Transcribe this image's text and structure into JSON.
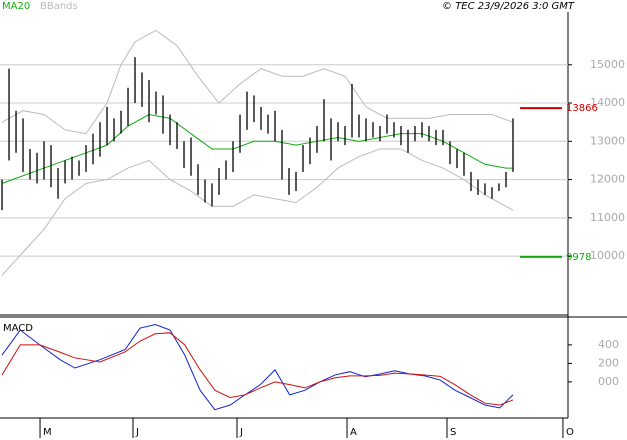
{
  "source": "© TEC 23/9/2026 3:0 GMT",
  "chart_data": [
    {
      "type": "ohlc",
      "xlim": [
        -0.29,
        80.86
      ],
      "xticks": [
        {
          "value": 5.43,
          "label": "M"
        },
        {
          "value": 18.71,
          "label": "J"
        },
        {
          "value": 33.57,
          "label": "J"
        },
        {
          "value": 49.29,
          "label": "A"
        },
        {
          "value": 63.57,
          "label": "S"
        },
        {
          "value": 80.14,
          "label": "O"
        }
      ],
      "ylim": [
        8460,
        16380
      ],
      "yticks": [
        10000,
        11000,
        12000,
        13000,
        14000,
        15000
      ],
      "grid": true,
      "bars": {
        "color": "#000000",
        "high": [
          12000,
          14900,
          13800,
          13600,
          12800,
          12700,
          13000,
          12900,
          12300,
          12500,
          12600,
          12500,
          12900,
          13200,
          13500,
          13900,
          13600,
          13800,
          14400,
          15200,
          14800,
          14600,
          14300,
          14200,
          13700,
          13500,
          13000,
          13100,
          12400,
          12000,
          11900,
          12300,
          12500,
          13000,
          13700,
          14300,
          14200,
          13900,
          13700,
          13800,
          13300,
          12300,
          12200,
          12900,
          13100,
          13400,
          14100,
          13600,
          13500,
          13400,
          14500,
          13700,
          13600,
          13500,
          13400,
          13700,
          13500,
          13400,
          13300,
          13400,
          13500,
          13400,
          13300,
          13300,
          13000,
          12800,
          12700,
          12200,
          12000,
          11900,
          11800,
          11900,
          12200,
          13600
        ],
        "low": [
          11200,
          12500,
          12700,
          12200,
          12000,
          11900,
          12000,
          11800,
          11500,
          11900,
          12000,
          12100,
          12200,
          12400,
          12600,
          12900,
          13000,
          13200,
          13400,
          14000,
          13900,
          13500,
          13700,
          13200,
          12900,
          12800,
          12300,
          12100,
          11600,
          11400,
          11300,
          11600,
          12000,
          12200,
          12700,
          13300,
          13500,
          13300,
          13200,
          13000,
          12000,
          11600,
          11700,
          12200,
          12400,
          12700,
          13000,
          12500,
          13000,
          12900,
          13100,
          13100,
          13000,
          13100,
          13000,
          13200,
          13100,
          12900,
          12700,
          13000,
          13100,
          13000,
          12900,
          12900,
          12400,
          12300,
          12100,
          11700,
          11600,
          11600,
          11500,
          11700,
          11800,
          12200
        ]
      },
      "series": [
        {
          "name": "MA20",
          "color": "#11aa11",
          "x": [
            0,
            3,
            6,
            9,
            12,
            15,
            18,
            21,
            24,
            27,
            30,
            33,
            36,
            39,
            42,
            45,
            48,
            51,
            54,
            57,
            60,
            63,
            66,
            69,
            72,
            73
          ],
          "values": [
            11900,
            12100,
            12300,
            12500,
            12700,
            12900,
            13400,
            13700,
            13600,
            13200,
            12800,
            12800,
            13000,
            13000,
            12900,
            13000,
            13100,
            13000,
            13100,
            13200,
            13200,
            13000,
            12700,
            12400,
            12300,
            12300
          ]
        },
        {
          "name": "BBands",
          "color": "#bbbbbb",
          "x": [
            0,
            3,
            6,
            9,
            12,
            15,
            17,
            19,
            22,
            25,
            28,
            31,
            34,
            37,
            40,
            43,
            46,
            49,
            52,
            55,
            58,
            61,
            64,
            67,
            70,
            73
          ],
          "upper": [
            13500,
            13800,
            13700,
            13300,
            13200,
            14000,
            15000,
            15600,
            15900,
            15500,
            14700,
            14000,
            14500,
            14900,
            14700,
            14700,
            14900,
            14700,
            13900,
            13600,
            13600,
            13600,
            13700,
            13700,
            13700,
            13500
          ],
          "lower_x": [
            0,
            3,
            6,
            9,
            12,
            15,
            18,
            21,
            24,
            27,
            30,
            33,
            36,
            39,
            42,
            45,
            48,
            51,
            54,
            57,
            60,
            63,
            66,
            69,
            72,
            73
          ],
          "lower": [
            9500,
            10100,
            10700,
            11500,
            11900,
            12000,
            12300,
            12500,
            12000,
            11700,
            11300,
            11300,
            11600,
            11500,
            11400,
            11800,
            12300,
            12600,
            12800,
            12800,
            12500,
            12300,
            12000,
            11600,
            11300,
            11200
          ]
        }
      ],
      "levels": [
        {
          "value": 13866,
          "color": "#cc0000"
        },
        {
          "value": 9978,
          "color": "#11aa11"
        }
      ]
    },
    {
      "type": "line",
      "title": "MACD",
      "ylim": [
        -390,
        690
      ],
      "yticks": [
        400,
        200,
        {
          "value": 0,
          "label": "000"
        }
      ],
      "x": [
        0,
        2.6,
        5.4,
        8.3,
        10.4,
        14,
        17.6,
        19.7,
        21.9,
        24,
        26.1,
        28.3,
        30.4,
        32.6,
        34.7,
        36.9,
        39,
        41.1,
        43.3,
        45.4,
        47.6,
        49.7,
        51.9,
        54,
        56.1,
        58.3,
        60.4,
        62.6,
        64.7,
        66.9,
        69,
        71.1,
        73
      ],
      "series": [
        {
          "color": "#1122cc",
          "values": [
            290,
            560,
            400,
            240,
            150,
            240,
            350,
            580,
            620,
            560,
            290,
            -90,
            -300,
            -250,
            -140,
            -30,
            130,
            -140,
            -90,
            0,
            75,
            110,
            55,
            85,
            120,
            85,
            65,
            20,
            -90,
            -170,
            -250,
            -280,
            -140
          ]
        },
        {
          "color": "#cc1111",
          "values": [
            75,
            400,
            400,
            320,
            260,
            215,
            325,
            440,
            520,
            530,
            400,
            130,
            -90,
            -170,
            -140,
            -65,
            0,
            -30,
            -65,
            0,
            45,
            65,
            65,
            70,
            95,
            85,
            75,
            60,
            -30,
            -140,
            -230,
            -250,
            -195
          ]
        }
      ]
    }
  ]
}
